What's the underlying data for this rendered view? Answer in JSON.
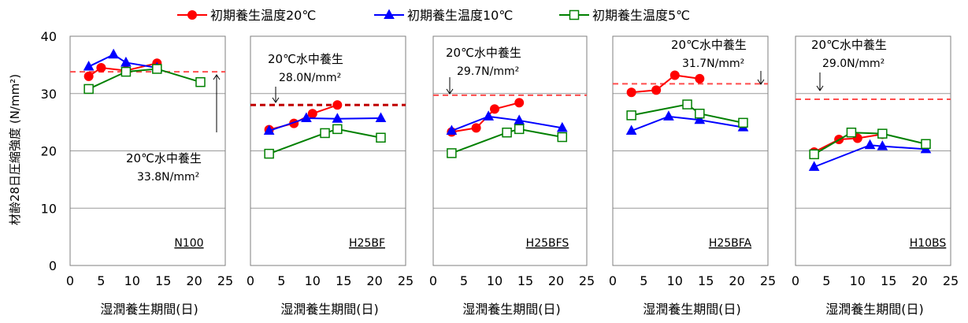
{
  "chart_data": {
    "type": "line",
    "ylabel": "材齢28日圧縮強度 (N/mm²)",
    "xlabel": "湿潤養生期間(日)",
    "xlim": [
      0,
      25
    ],
    "ylim": [
      0,
      40
    ],
    "xticks": [
      "0",
      "5",
      "10",
      "15",
      "20",
      "25"
    ],
    "yticks": [
      "0",
      "10",
      "20",
      "30",
      "40"
    ],
    "grid": "horizontal",
    "legend": {
      "placement": "top",
      "entries": [
        {
          "name": "初期養生温度20℃",
          "color": "#ff0000",
          "marker": "circle"
        },
        {
          "name": "初期養生温度10℃",
          "color": "#0000ff",
          "marker": "triangle"
        },
        {
          "name": "初期養生温度5℃",
          "color": "#008000",
          "marker": "square-open"
        }
      ]
    },
    "panels": [
      {
        "label": "N100",
        "reference": {
          "value": 33.8,
          "line1": "20℃水中養生",
          "line2": "33.8N/mm²"
        },
        "series": [
          {
            "x": [
              3,
              5,
              9,
              14
            ],
            "y": [
              33.0,
              34.5,
              34.0,
              35.3
            ]
          },
          {
            "x": [
              3,
              7,
              9,
              14
            ],
            "y": [
              34.7,
              36.8,
              35.4,
              34.5
            ]
          },
          {
            "x": [
              3,
              9,
              14,
              21
            ],
            "y": [
              30.8,
              33.8,
              34.3,
              32.0
            ]
          }
        ]
      },
      {
        "label": "H25BF",
        "reference": {
          "value": 28.0,
          "line1": "20℃水中養生",
          "line2": "28.0N/mm²"
        },
        "series": [
          {
            "x": [
              3,
              7,
              10,
              14
            ],
            "y": [
              23.7,
              24.8,
              26.5,
              28.0
            ]
          },
          {
            "x": [
              3,
              9,
              14,
              21
            ],
            "y": [
              23.5,
              25.7,
              25.6,
              25.7
            ]
          },
          {
            "x": [
              3,
              12,
              14,
              21
            ],
            "y": [
              19.5,
              23.1,
              23.8,
              22.3
            ]
          }
        ]
      },
      {
        "label": "H25BFS",
        "reference": {
          "value": 29.7,
          "line1": "20℃水中養生",
          "line2": "29.7N/mm²"
        },
        "series": [
          {
            "x": [
              3,
              7,
              10,
              14
            ],
            "y": [
              23.3,
              24.0,
              27.3,
              28.4
            ]
          },
          {
            "x": [
              3,
              9,
              14,
              21
            ],
            "y": [
              23.5,
              26.0,
              25.3,
              24.0
            ]
          },
          {
            "x": [
              3,
              12,
              14,
              21
            ],
            "y": [
              19.6,
              23.2,
              23.8,
              22.4
            ]
          }
        ]
      },
      {
        "label": "H25BFA",
        "reference": {
          "value": 31.7,
          "line1": "20℃水中養生",
          "line2": "31.7N/mm²"
        },
        "series": [
          {
            "x": [
              3,
              7,
              10,
              14
            ],
            "y": [
              30.2,
              30.6,
              33.2,
              32.6
            ]
          },
          {
            "x": [
              3,
              9,
              14,
              21
            ],
            "y": [
              23.5,
              26.0,
              25.4,
              24.1
            ]
          },
          {
            "x": [
              3,
              12,
              14,
              21
            ],
            "y": [
              26.2,
              28.1,
              26.5,
              24.9
            ]
          }
        ]
      },
      {
        "label": "H10BS",
        "reference": {
          "value": 29.0,
          "line1": "20℃水中養生",
          "line2": "29.0N/mm²"
        },
        "series": [
          {
            "x": [
              3,
              7,
              10,
              14
            ],
            "y": [
              19.8,
              22.0,
              22.2,
              22.9
            ]
          },
          {
            "x": [
              3,
              12,
              14,
              21
            ],
            "y": [
              17.2,
              21.0,
              20.8,
              20.3
            ]
          },
          {
            "x": [
              3,
              9,
              14,
              21
            ],
            "y": [
              19.4,
              23.2,
              23.0,
              21.2
            ]
          }
        ]
      }
    ]
  }
}
